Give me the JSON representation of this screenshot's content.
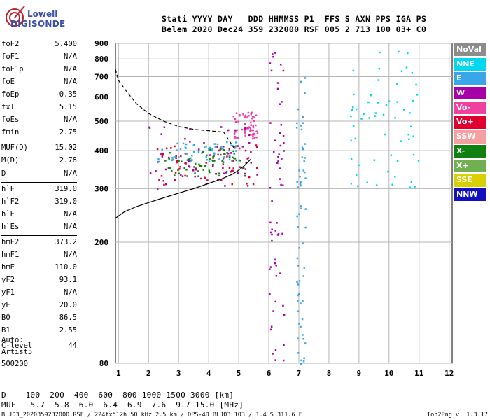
{
  "logo": {
    "line1": "Lowell",
    "line2": "DIGISONDE",
    "icon": "antenna-logo-icon"
  },
  "header": {
    "line1": "Stati YYYY DAY   DDD HHMMSS P1  FFS S AXN PPS IGA PS",
    "line2": "Belem 2020 Dec24 359 232000 RSF 005 2 713 100 03+ C0"
  },
  "params_group1": [
    {
      "k": "foF2",
      "v": "5.400"
    },
    {
      "k": "foF1",
      "v": "N/A"
    },
    {
      "k": "foF1p",
      "v": "N/A"
    },
    {
      "k": "foE",
      "v": "N/A"
    },
    {
      "k": "foEp",
      "v": "0.35"
    },
    {
      "k": "fxI",
      "v": "5.15"
    },
    {
      "k": "foEs",
      "v": "N/A"
    },
    {
      "k": "fmin",
      "v": "2.75"
    }
  ],
  "params_group2": [
    {
      "k": "MUF(D)",
      "v": "15.02"
    },
    {
      "k": "M(D)",
      "v": "2.78"
    },
    {
      "k": "D",
      "v": "N/A"
    }
  ],
  "params_group3": [
    {
      "k": "h`F",
      "v": "319.0"
    },
    {
      "k": "h`F2",
      "v": "319.0"
    },
    {
      "k": "h`E",
      "v": "N/A"
    },
    {
      "k": "h`Es",
      "v": "N/A"
    }
  ],
  "params_group4": [
    {
      "k": "hmF2",
      "v": "373.2"
    },
    {
      "k": "hmF1",
      "v": "N/A"
    },
    {
      "k": "hmE",
      "v": "110.0"
    },
    {
      "k": "yF2",
      "v": "93.1"
    },
    {
      "k": "yF1",
      "v": "N/A"
    },
    {
      "k": "yE",
      "v": "20.0"
    },
    {
      "k": "B0",
      "v": "86.5"
    },
    {
      "k": "B1",
      "v": "2.55"
    }
  ],
  "params_group5": [
    {
      "k": "C-level",
      "v": "44"
    }
  ],
  "auto": {
    "line1": "Auto:",
    "line2": "Artist5",
    "line3": "500200"
  },
  "legend": [
    {
      "label": "NoVal",
      "color": "#8c8c8c"
    },
    {
      "label": "NNE",
      "color": "#00d8f0"
    },
    {
      "label": "E",
      "color": "#3aa6ea"
    },
    {
      "label": "W",
      "color": "#a800a8"
    },
    {
      "label": "Vo-",
      "color": "#f040a0"
    },
    {
      "label": "Vo+",
      "color": "#e00030"
    },
    {
      "label": "SSW",
      "color": "#f4a0a0"
    },
    {
      "label": "X-",
      "color": "#108010"
    },
    {
      "label": "X+",
      "color": "#70b050"
    },
    {
      "label": "SSE",
      "color": "#d8d000"
    },
    {
      "label": "NNW",
      "color": "#1010c0"
    }
  ],
  "footer": {
    "d_line": "D    100  200  400  600  800 1000 1500 3000 [km]",
    "muf_line": "MUF   5.7  5.8  6.0  6.4  6.9  7.6  9.7 15.0 [MHz]",
    "file_line": "BLJ03_2020359232000.RSF / 224fx512h 50 kHz 2.5 km / DPS-4D BLJ03 103 / 1.4 S 311.6 E",
    "version": "Ion2Png v. 1.3.17"
  },
  "chart_data": {
    "type": "scatter",
    "title": "",
    "xlabel": "",
    "ylabel": "",
    "x_ticks": [
      "1",
      "2",
      "3",
      "4",
      "5",
      "6",
      "7",
      "8",
      "9",
      "10",
      "11",
      "12"
    ],
    "y_ticks": [
      "80",
      "200",
      "300",
      "400",
      "500",
      "600",
      "700",
      "800",
      "900"
    ],
    "xlim": [
      0.9,
      12.1
    ],
    "y_axis_scale": "log",
    "ylim": [
      80,
      900
    ],
    "grid": true,
    "legend_placement": "right",
    "series": [
      {
        "name": "X-",
        "style": "solid-line",
        "color": "#000000",
        "x": [
          0.9,
          1.2,
          1.6,
          2.0,
          2.5,
          3.0,
          3.5,
          4.0,
          4.4,
          4.8,
          5.0,
          5.2,
          5.4
        ],
        "y": [
          240,
          252,
          262,
          270,
          280,
          290,
          300,
          312,
          322,
          335,
          345,
          358,
          375
        ]
      },
      {
        "name": "X+",
        "style": "dashed-line",
        "color": "#000000",
        "x": [
          0.9,
          1.0,
          1.3,
          1.6,
          2.0,
          2.5,
          3.0,
          3.5,
          4.0,
          4.5,
          4.9
        ],
        "y": [
          740,
          680,
          620,
          570,
          530,
          500,
          480,
          470,
          465,
          460,
          400
        ]
      }
    ],
    "echo_clusters": [
      {
        "color": "#a800a8",
        "x": [
          2.0,
          5.6
        ],
        "y": [
          300,
          500
        ]
      },
      {
        "color": "#e00030",
        "x": [
          2.2,
          5.6
        ],
        "y": [
          310,
          420
        ]
      },
      {
        "color": "#3aa6ea",
        "x": [
          2.3,
          5.0
        ],
        "y": [
          370,
          430
        ]
      },
      {
        "color": "#f040a0",
        "x": [
          4.8,
          5.6
        ],
        "y": [
          440,
          540
        ]
      },
      {
        "color": "#108010",
        "x": [
          2.4,
          5.2
        ],
        "y": [
          330,
          410
        ]
      },
      {
        "color": "#3aa6ea",
        "x": [
          6.9,
          7.2
        ],
        "y": [
          80,
          700
        ]
      },
      {
        "color": "#a800a8",
        "x": [
          6.0,
          6.5
        ],
        "y": [
          80,
          900
        ]
      },
      {
        "color": "#00d8f0",
        "x": [
          8.7,
          11.0
        ],
        "y": [
          300,
          880
        ]
      }
    ]
  }
}
